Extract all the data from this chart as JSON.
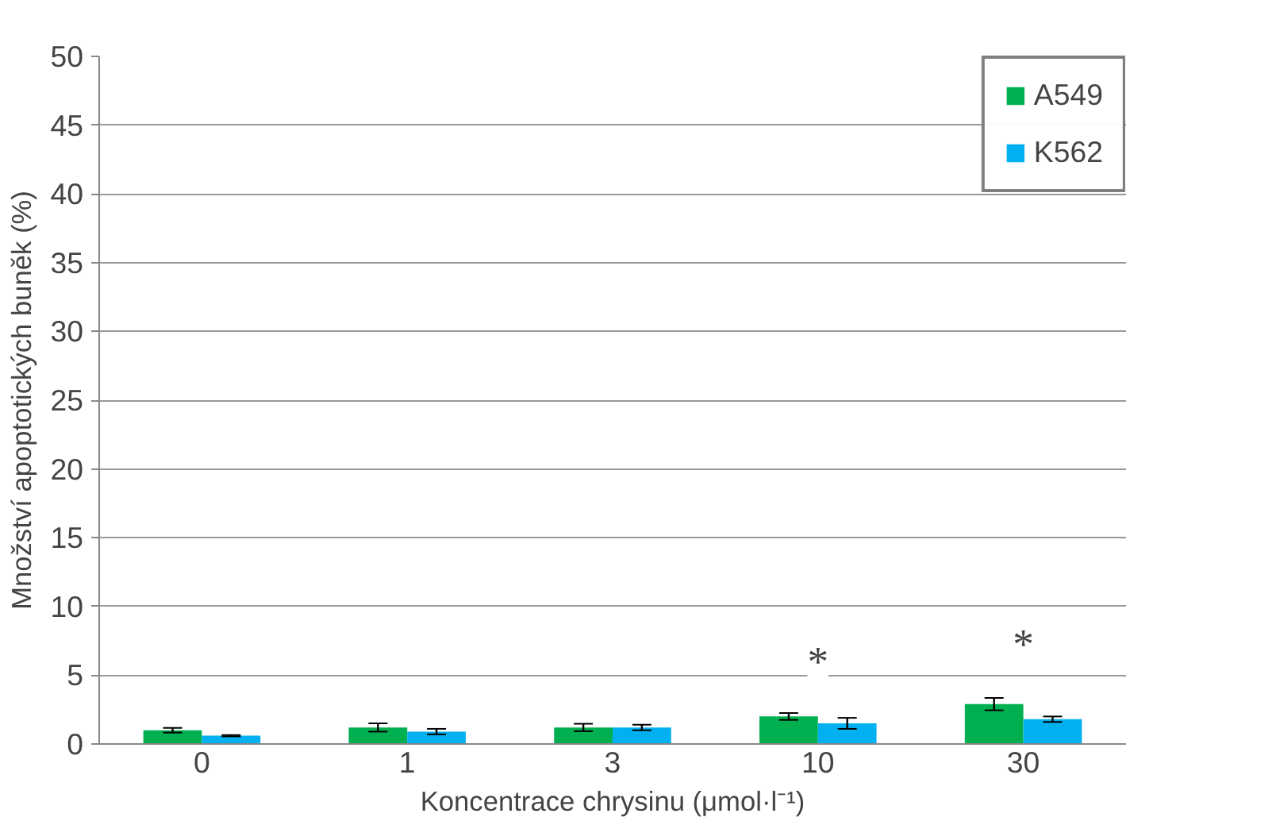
{
  "chart_data": {
    "type": "bar",
    "xlabel": "Koncentrace chrysinu (μmol·l⁻¹)",
    "ylabel": "Množství apoptotických buněk (%)",
    "categories": [
      "0",
      "1",
      "3",
      "10",
      "30"
    ],
    "series": [
      {
        "name": "A549",
        "color": "#00b050",
        "values": [
          1.0,
          1.2,
          1.2,
          2.0,
          2.9
        ],
        "errors": [
          0.17,
          0.3,
          0.27,
          0.25,
          0.45
        ]
      },
      {
        "name": "K562",
        "color": "#00b0f0",
        "values": [
          0.6,
          0.9,
          1.2,
          1.5,
          1.8
        ],
        "errors": [
          0.05,
          0.2,
          0.2,
          0.4,
          0.2
        ]
      }
    ],
    "annotations": [
      {
        "text": "*",
        "x": "10",
        "y": 6
      },
      {
        "text": "*",
        "x": "30",
        "y": 7.3
      }
    ],
    "ylim": [
      0,
      50
    ],
    "yticks": [
      0,
      5,
      10,
      15,
      20,
      25,
      30,
      35,
      40,
      45,
      50
    ],
    "grid": "y",
    "legend": "top right"
  }
}
